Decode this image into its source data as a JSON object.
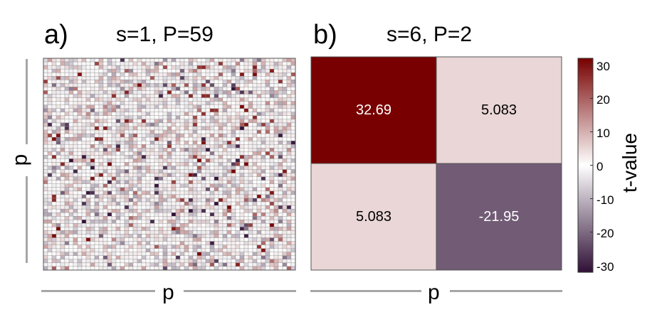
{
  "panel_a": {
    "letter": "a)",
    "title": "s=1, P=59"
  },
  "panel_b": {
    "letter": "b)",
    "title": "s=6, P=2"
  },
  "axis": {
    "x_label": "p",
    "y_label": "p"
  },
  "colorbar": {
    "title": "t-value",
    "ticks": [
      "30",
      "20",
      "10",
      "0",
      "-10",
      "-20",
      "-30"
    ]
  },
  "chart_data": [
    {
      "type": "heatmap",
      "title": "s=1, P=59",
      "xlabel": "p",
      "ylabel": "p",
      "rows": 59,
      "cols": 59,
      "vlim": [
        -32,
        32
      ],
      "note_values": "59x59 grid of t-values mostly between -30 and 30; individual cell values are too small to read"
    },
    {
      "type": "heatmap",
      "title": "s=6, P=2",
      "xlabel": "p",
      "ylabel": "p",
      "rows": 2,
      "cols": 2,
      "values": [
        [
          32.69,
          5.083
        ],
        [
          5.083,
          -21.95
        ]
      ],
      "cell_labels": [
        [
          "32.69",
          "5.083"
        ],
        [
          "5.083",
          "-21.95"
        ]
      ],
      "vlim": [
        -32,
        32
      ],
      "colorbar_ticks": [
        30,
        20,
        10,
        0,
        -10,
        -20,
        -30
      ],
      "colorbar_label": "t-value"
    }
  ]
}
